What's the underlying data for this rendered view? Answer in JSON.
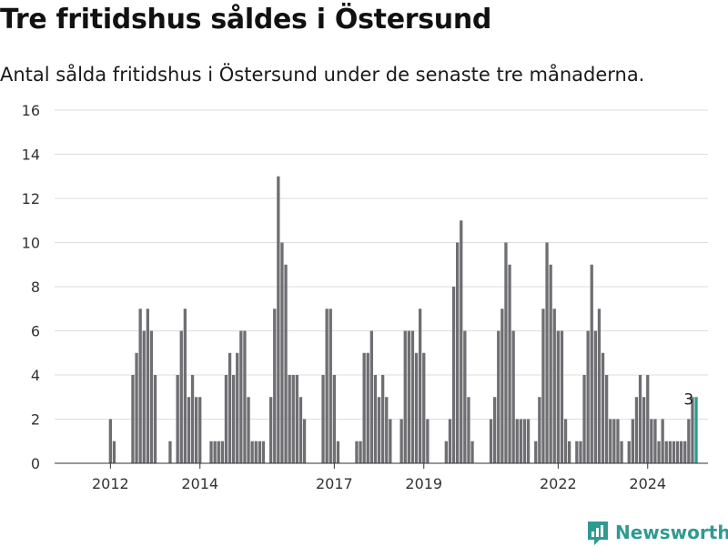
{
  "chart_data": {
    "type": "bar",
    "title": "Tre fritidshus såldes i Östersund",
    "subtitle": "Antal sålda fritidshus i Östersund under de senaste tre månaderna.",
    "xlabel": "",
    "ylabel": "",
    "ylim": [
      0,
      16
    ],
    "yticks": [
      "0",
      "2",
      "4",
      "6",
      "8",
      "10",
      "12",
      "14",
      "16"
    ],
    "xticks": [
      {
        "label": "2012",
        "index": 7
      },
      {
        "label": "2014",
        "index": 31
      },
      {
        "label": "2017",
        "index": 67
      },
      {
        "label": "2019",
        "index": 91
      },
      {
        "label": "2022",
        "index": 127
      },
      {
        "label": "2024",
        "index": 151
      }
    ],
    "grid": true,
    "bar_color": "#6e6e73",
    "highlight_color": "#2a9d8f",
    "annotation": {
      "text": "3",
      "index": 162
    },
    "values": [
      0,
      0,
      0,
      0,
      0,
      0,
      0,
      2,
      1,
      0,
      0,
      0,
      0,
      4,
      5,
      7,
      6,
      7,
      6,
      4,
      0,
      0,
      0,
      1,
      0,
      4,
      6,
      7,
      3,
      4,
      3,
      3,
      0,
      0,
      1,
      1,
      1,
      1,
      4,
      5,
      4,
      5,
      6,
      6,
      3,
      1,
      1,
      1,
      1,
      0,
      3,
      7,
      13,
      10,
      9,
      4,
      4,
      4,
      3,
      2,
      0,
      0,
      0,
      0,
      4,
      7,
      7,
      4,
      1,
      0,
      0,
      0,
      0,
      1,
      1,
      5,
      5,
      6,
      4,
      3,
      4,
      3,
      2,
      0,
      0,
      2,
      6,
      6,
      6,
      5,
      7,
      5,
      2,
      0,
      0,
      0,
      0,
      1,
      2,
      8,
      10,
      11,
      6,
      3,
      1,
      0,
      0,
      0,
      0,
      2,
      3,
      6,
      7,
      10,
      9,
      6,
      2,
      2,
      2,
      2,
      0,
      1,
      3,
      7,
      10,
      9,
      7,
      6,
      6,
      2,
      1,
      0,
      1,
      1,
      4,
      6,
      9,
      6,
      7,
      5,
      4,
      2,
      2,
      2,
      1,
      0,
      1,
      2,
      3,
      4,
      3,
      4,
      2,
      2,
      1,
      2,
      1,
      1,
      1,
      1,
      1,
      1,
      2,
      3,
      3
    ]
  },
  "brand": {
    "name": "Newsworthy",
    "icon": "newsworthy-logo-icon"
  }
}
